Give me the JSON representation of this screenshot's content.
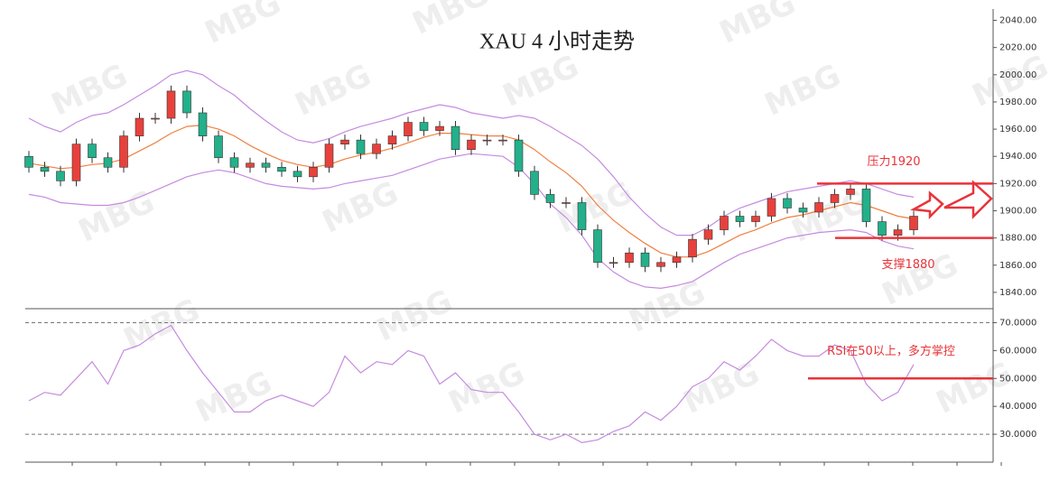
{
  "chart_data": [
    {
      "type": "candlestick",
      "title": "XAU 4 小时走势",
      "watermark": "MBG",
      "open": [
        1940,
        1932,
        1929,
        1922,
        1949,
        1939,
        1932,
        1955,
        1968,
        1968,
        1988,
        1972,
        1955,
        1939,
        1932,
        1935,
        1932,
        1929,
        1925,
        1932,
        1949,
        1952,
        1942,
        1949,
        1955,
        1965,
        1959,
        1962,
        1945,
        1952,
        1952,
        1952,
        1929,
        1912,
        1906,
        1906,
        1886,
        1862,
        1862,
        1869,
        1859,
        1862,
        1866,
        1879,
        1886,
        1896,
        1892,
        1896,
        1909,
        1902,
        1899,
        1906,
        1912,
        1916,
        1892,
        1882,
        1886
      ],
      "high": [
        1944,
        1936,
        1933,
        1953,
        1953,
        1943,
        1959,
        1972,
        1972,
        1992,
        1992,
        1976,
        1959,
        1943,
        1939,
        1939,
        1936,
        1933,
        1936,
        1953,
        1956,
        1956,
        1953,
        1959,
        1969,
        1969,
        1966,
        1966,
        1956,
        1956,
        1956,
        1956,
        1933,
        1916,
        1910,
        1910,
        1890,
        1866,
        1873,
        1873,
        1866,
        1870,
        1883,
        1890,
        1900,
        1900,
        1900,
        1913,
        1913,
        1906,
        1910,
        1916,
        1920,
        1920,
        1896,
        1890,
        1900
      ],
      "low": [
        1928,
        1925,
        1918,
        1918,
        1935,
        1928,
        1928,
        1951,
        1964,
        1964,
        1968,
        1951,
        1935,
        1928,
        1928,
        1928,
        1925,
        1921,
        1921,
        1928,
        1945,
        1938,
        1938,
        1945,
        1951,
        1955,
        1955,
        1941,
        1941,
        1948,
        1948,
        1925,
        1908,
        1902,
        1902,
        1882,
        1858,
        1858,
        1858,
        1855,
        1855,
        1858,
        1862,
        1875,
        1882,
        1888,
        1888,
        1892,
        1898,
        1895,
        1895,
        1902,
        1908,
        1888,
        1878,
        1878,
        1882
      ],
      "close": [
        1932,
        1929,
        1922,
        1949,
        1939,
        1932,
        1955,
        1968,
        1968,
        1988,
        1972,
        1955,
        1939,
        1932,
        1935,
        1932,
        1929,
        1925,
        1932,
        1949,
        1952,
        1942,
        1949,
        1955,
        1965,
        1959,
        1962,
        1945,
        1952,
        1952,
        1952,
        1929,
        1912,
        1906,
        1906,
        1886,
        1862,
        1862,
        1869,
        1859,
        1862,
        1866,
        1879,
        1886,
        1896,
        1892,
        1896,
        1909,
        1902,
        1899,
        1906,
        1912,
        1916,
        1892,
        1882,
        1886,
        1896
      ],
      "up_color": "#e8413c",
      "down_color": "#23b08a",
      "overlays": [
        {
          "color": "#c58be0",
          "values": [
            1968,
            1962,
            1958,
            1965,
            1970,
            1972,
            1978,
            1985,
            1992,
            2000,
            2003,
            2000,
            1992,
            1985,
            1975,
            1966,
            1958,
            1952,
            1950,
            1953,
            1958,
            1962,
            1965,
            1968,
            1972,
            1975,
            1978,
            1976,
            1972,
            1970,
            1968,
            1970,
            1968,
            1962,
            1955,
            1948,
            1938,
            1925,
            1910,
            1898,
            1888,
            1882,
            1882,
            1888,
            1896,
            1902,
            1906,
            1910,
            1914,
            1916,
            1918,
            1920,
            1922,
            1920,
            1916,
            1912,
            1910
          ]
        },
        {
          "color": "#f08040",
          "values": [
            1935,
            1933,
            1931,
            1932,
            1934,
            1935,
            1938,
            1944,
            1950,
            1957,
            1962,
            1963,
            1960,
            1955,
            1948,
            1942,
            1937,
            1934,
            1932,
            1934,
            1938,
            1941,
            1943,
            1946,
            1950,
            1954,
            1957,
            1957,
            1956,
            1955,
            1955,
            1952,
            1945,
            1936,
            1928,
            1918,
            1904,
            1893,
            1884,
            1876,
            1869,
            1866,
            1866,
            1870,
            1876,
            1882,
            1886,
            1891,
            1895,
            1897,
            1900,
            1903,
            1906,
            1904,
            1900,
            1896,
            1894
          ]
        },
        {
          "color": "#c58be0",
          "values": [
            1912,
            1910,
            1906,
            1905,
            1904,
            1904,
            1906,
            1910,
            1915,
            1920,
            1925,
            1928,
            1930,
            1928,
            1924,
            1920,
            1918,
            1917,
            1916,
            1917,
            1920,
            1922,
            1924,
            1926,
            1930,
            1934,
            1938,
            1940,
            1942,
            1941,
            1940,
            1932,
            1920,
            1905,
            1895,
            1882,
            1865,
            1855,
            1848,
            1844,
            1843,
            1845,
            1848,
            1855,
            1862,
            1868,
            1872,
            1876,
            1880,
            1882,
            1884,
            1885,
            1886,
            1884,
            1878,
            1874,
            1872
          ]
        }
      ],
      "ylim": [
        1828,
        2045
      ],
      "yticks": [
        {
          "value": 1840,
          "label": "1840.00"
        },
        {
          "value": 1860,
          "label": "1860.00"
        },
        {
          "value": 1880,
          "label": "1880.00"
        },
        {
          "value": 1900,
          "label": "1900.00"
        },
        {
          "value": 1920,
          "label": "1920.00"
        },
        {
          "value": 1940,
          "label": "1940.00"
        },
        {
          "value": 1960,
          "label": "1960.00"
        },
        {
          "value": 1980,
          "label": "1980.00"
        },
        {
          "value": 2000,
          "label": "2000.00"
        },
        {
          "value": 2020,
          "label": "2020.00"
        },
        {
          "value": 2040,
          "label": "2040.00"
        }
      ],
      "levels": [
        {
          "value": 1920,
          "label": "压力1920",
          "color": "#e8343a"
        },
        {
          "value": 1880,
          "label": "支撑1880",
          "color": "#e8343a"
        }
      ]
    },
    {
      "type": "line",
      "color": "#c58be0",
      "values": [
        42,
        45,
        44,
        50,
        56,
        48,
        60,
        62,
        66,
        69,
        60,
        52,
        45,
        38,
        38,
        42,
        44,
        42,
        40,
        45,
        58,
        52,
        56,
        55,
        60,
        58,
        48,
        52,
        46,
        45,
        45,
        38,
        30,
        28,
        30,
        27,
        28,
        31,
        33,
        38,
        35,
        40,
        47,
        50,
        56,
        53,
        58,
        64,
        60,
        58,
        58,
        62,
        60,
        48,
        42,
        45,
        55
      ],
      "ylim": [
        20,
        75
      ],
      "yticks": [
        {
          "value": 30,
          "label": "30.0000"
        },
        {
          "value": 40,
          "label": "40.0000"
        },
        {
          "value": 50,
          "label": "50.0000"
        },
        {
          "value": 60,
          "label": "60.0000"
        },
        {
          "value": 70,
          "label": "70.0000"
        }
      ],
      "levels": [
        {
          "value": 50,
          "label": "RSI在50以上，多方掌控",
          "color": "#e8343a"
        }
      ]
    }
  ]
}
